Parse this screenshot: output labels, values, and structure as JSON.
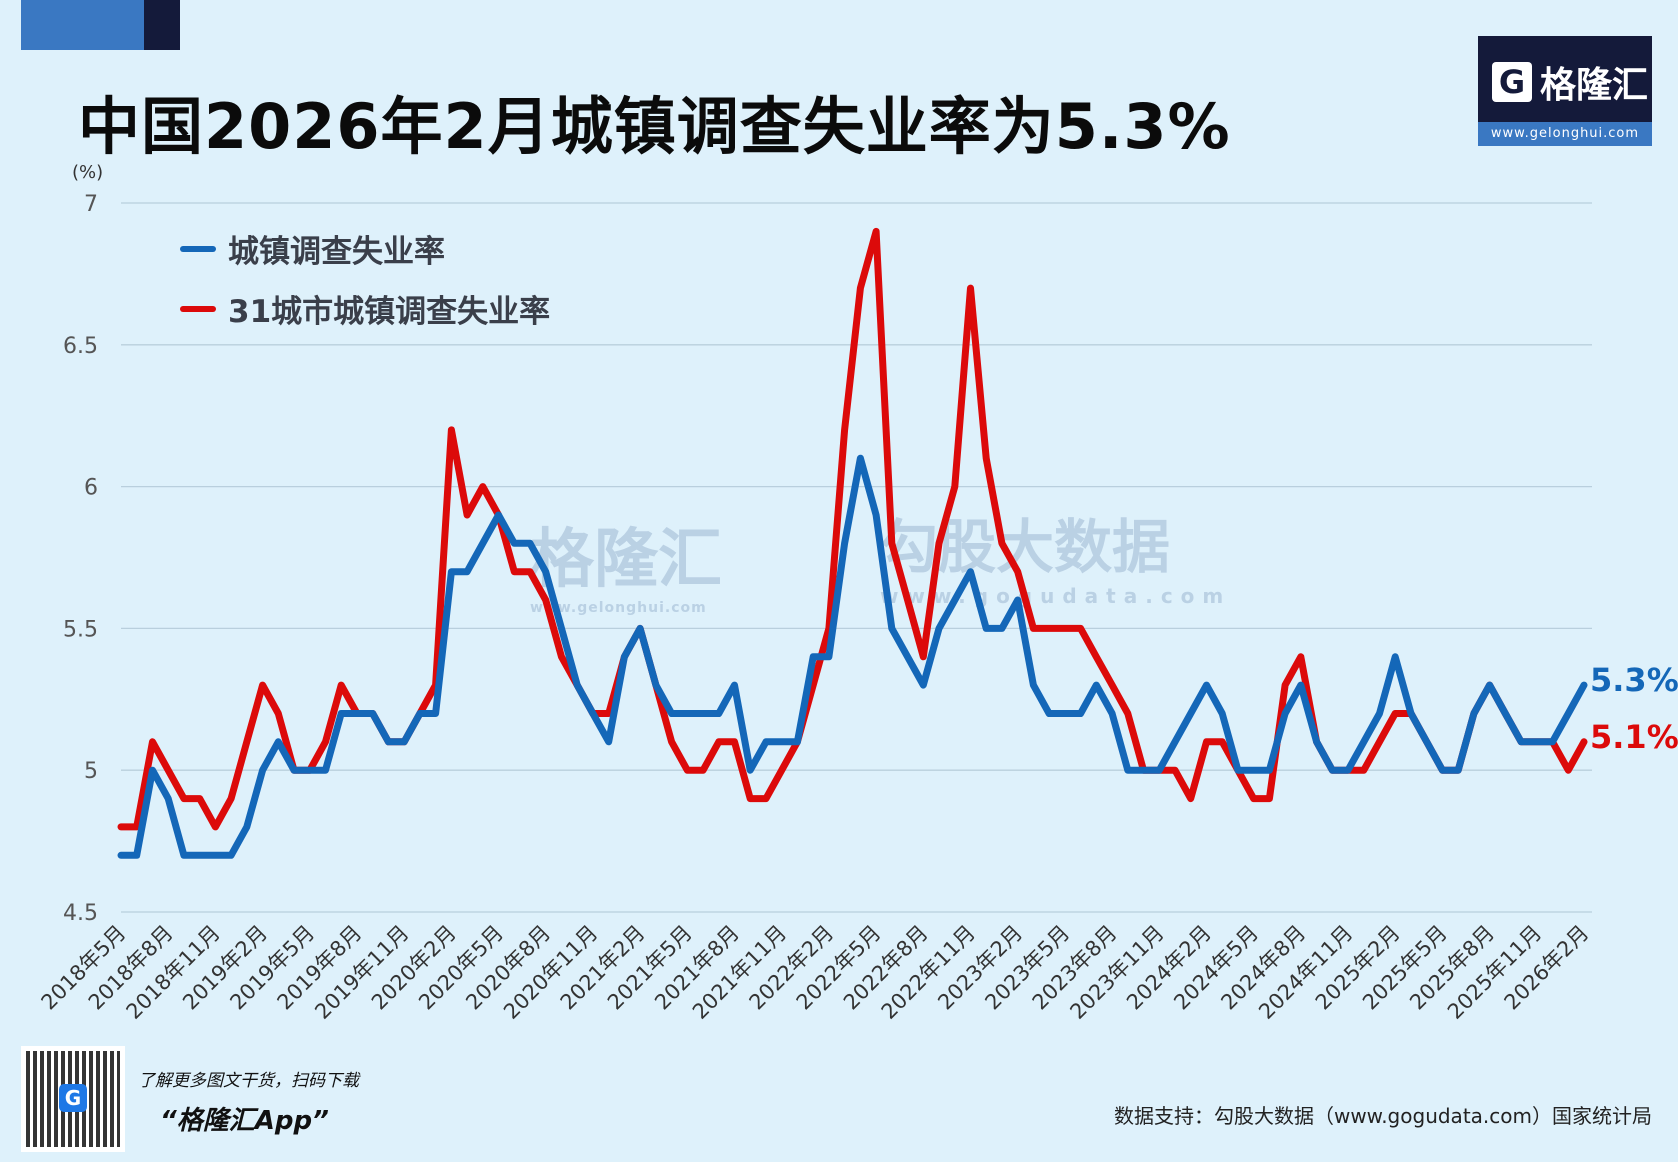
{
  "title": "中国2026年2月城镇调查失业率为5.3%",
  "logo": {
    "name": "格隆汇",
    "mark": "G",
    "url": "www.gelonghui.com"
  },
  "watermarks": [
    {
      "name": "格隆汇",
      "url": "www.gelonghui.com"
    },
    {
      "name": "勾股大数据",
      "url": "www.gogudata.com"
    }
  ],
  "footer": {
    "promo_line": "了解更多图文干货，扫码下载",
    "app_name": "“格隆汇App”",
    "source": "数据支持：勾股大数据（www.gogudata.com）国家统计局"
  },
  "colors": {
    "blue": "#1467b8",
    "red": "#dc0a0a",
    "grid": "#b9cfdd"
  },
  "chart_data": {
    "type": "line",
    "title": "中国2026年2月城镇调查失业率为5.3%",
    "ylabel": "(%)",
    "ylim": [
      4.5,
      7
    ],
    "yticks": [
      "4.5",
      "5",
      "5.5",
      "6",
      "6.5",
      "7"
    ],
    "grid": true,
    "legend_position": "top-left",
    "start_month": "2018-05",
    "xtick_labels": [
      "2018年5月",
      "2018年8月",
      "2018年11月",
      "2019年2月",
      "2019年5月",
      "2019年8月",
      "2019年11月",
      "2020年2月",
      "2020年5月",
      "2020年8月",
      "2020年11月",
      "2021年2月",
      "2021年5月",
      "2021年8月",
      "2021年11月",
      "2022年2月",
      "2022年5月",
      "2022年8月",
      "2022年11月",
      "2023年2月",
      "2023年5月",
      "2023年8月",
      "2023年11月",
      "2024年2月",
      "2024年5月",
      "2024年8月",
      "2024年11月",
      "2025年2月",
      "2025年5月",
      "2025年8月",
      "2025年11月",
      "2026年2月"
    ],
    "series": [
      {
        "name": "城镇调查失业率",
        "color": "#1467b8",
        "end_label": "5.3%",
        "values": [
          4.7,
          4.7,
          5.0,
          4.9,
          4.7,
          4.7,
          4.7,
          4.7,
          4.8,
          5.0,
          5.1,
          5.0,
          5.0,
          5.0,
          5.2,
          5.2,
          5.2,
          5.1,
          5.1,
          5.2,
          5.2,
          5.7,
          5.7,
          5.8,
          5.9,
          5.8,
          5.8,
          5.7,
          5.5,
          5.3,
          5.2,
          5.1,
          5.4,
          5.5,
          5.3,
          5.2,
          5.2,
          5.2,
          5.2,
          5.3,
          5.0,
          5.1,
          5.1,
          5.1,
          5.4,
          5.4,
          5.8,
          6.1,
          5.9,
          5.5,
          5.4,
          5.3,
          5.5,
          5.6,
          5.7,
          5.5,
          5.5,
          5.6,
          5.3,
          5.2,
          5.2,
          5.2,
          5.3,
          5.2,
          5.0,
          5.0,
          5.0,
          5.1,
          5.2,
          5.3,
          5.2,
          5.0,
          5.0,
          5.0,
          5.2,
          5.3,
          5.1,
          5.0,
          5.0,
          5.1,
          5.2,
          5.4,
          5.2,
          5.1,
          5.0,
          5.0,
          5.2,
          5.3,
          5.2,
          5.1,
          5.1,
          5.1,
          5.2,
          5.3
        ]
      },
      {
        "name": "31城市城镇调查失业率",
        "color": "#dc0a0a",
        "end_label": "5.1%",
        "values": [
          4.8,
          4.8,
          5.1,
          5.0,
          4.9,
          4.9,
          4.8,
          4.9,
          5.1,
          5.3,
          5.2,
          5.0,
          5.0,
          5.1,
          5.3,
          5.2,
          5.2,
          5.1,
          5.1,
          5.2,
          5.3,
          6.2,
          5.9,
          6.0,
          5.9,
          5.7,
          5.7,
          5.6,
          5.4,
          5.3,
          5.2,
          5.2,
          5.4,
          5.5,
          5.3,
          5.1,
          5.0,
          5.0,
          5.1,
          5.1,
          4.9,
          4.9,
          5.0,
          5.1,
          5.3,
          5.5,
          6.2,
          6.7,
          6.9,
          5.8,
          5.6,
          5.4,
          5.8,
          6.0,
          6.7,
          6.1,
          5.8,
          5.7,
          5.5,
          5.5,
          5.5,
          5.5,
          5.4,
          5.3,
          5.2,
          5.0,
          5.0,
          5.0,
          4.9,
          5.1,
          5.1,
          5.0,
          4.9,
          4.9,
          5.3,
          5.4,
          5.1,
          5.0,
          5.0,
          5.0,
          5.1,
          5.2,
          5.2,
          5.1,
          5.0,
          5.0,
          5.2,
          5.3,
          5.2,
          5.1,
          5.1,
          5.1,
          5.0,
          5.1
        ]
      }
    ]
  }
}
